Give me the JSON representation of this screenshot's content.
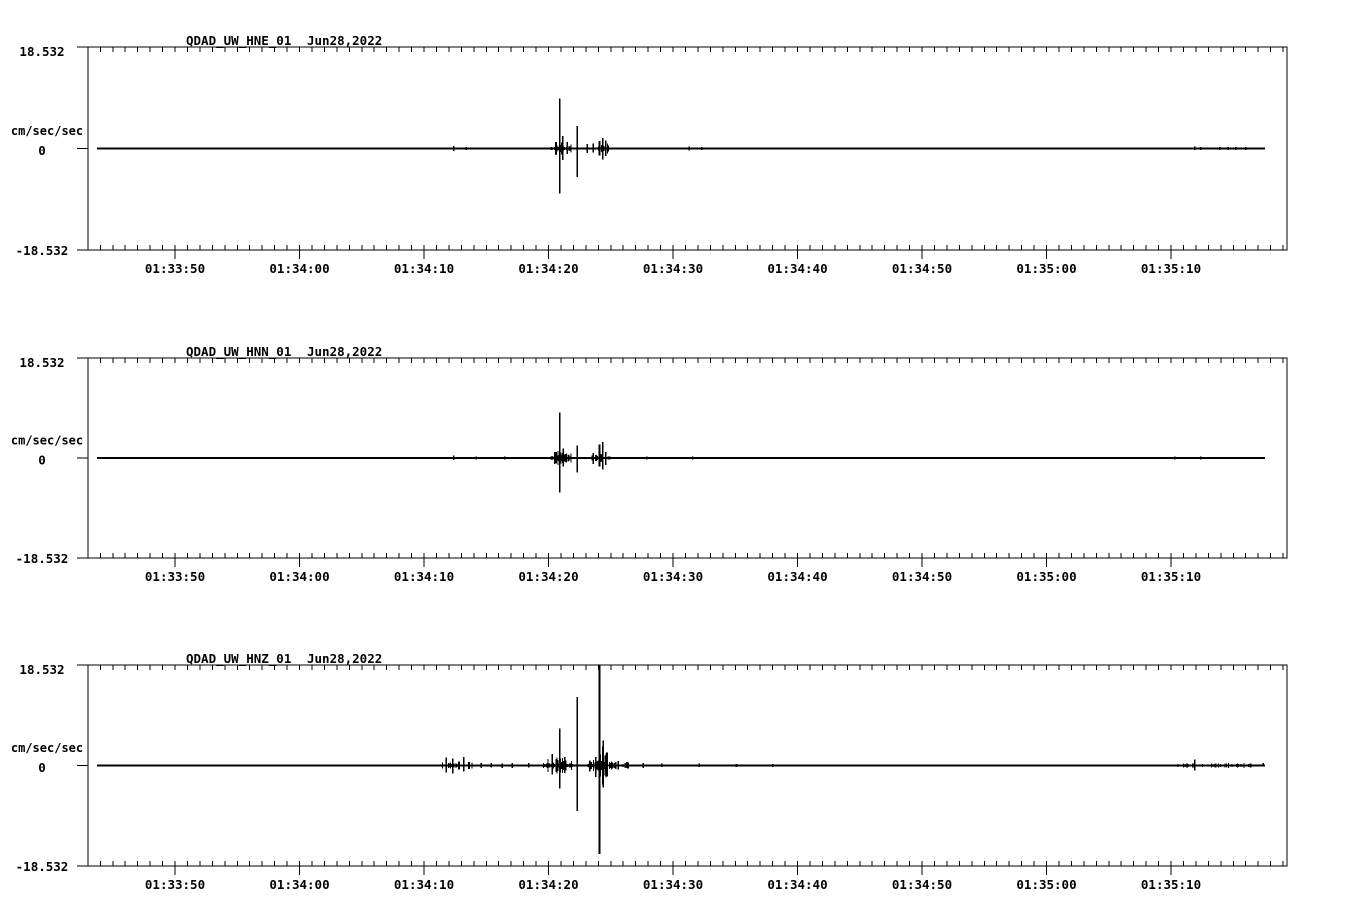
{
  "page": {
    "background_color": "#ffffff",
    "foreground_color": "#000000",
    "description": "Three-panel seismic strong-motion record display"
  },
  "chart_data": [
    {
      "type": "line",
      "title": "QDAD_UW_HNE_01",
      "date_label": "Jun28,2022",
      "ylabel": "cm/sec/sec",
      "ylim": [
        -18.532,
        18.532
      ],
      "ytick_labels": [
        "18.532",
        "0",
        "-18.532"
      ],
      "baseline_value": 0,
      "x_tick_labels": [
        "01:33:50",
        "01:34:00",
        "01:34:10",
        "01:34:20",
        "01:34:30",
        "01:34:40",
        "01:34:50",
        "01:35:00",
        "01:35:10"
      ],
      "x_tick_seconds": [
        10,
        20,
        30,
        40,
        50,
        60,
        70,
        80,
        90
      ],
      "x_minor_interval_sec": 1,
      "time_origin": "01:33:40",
      "trace": {
        "start_sec": 3.74,
        "end_sec": 97.56,
        "amplitude_units": "cm/sec/sec",
        "spikes": [
          {
            "t": 32.4,
            "up": 0.45,
            "down": 0.45
          },
          {
            "t": 33.4,
            "up": 0.3,
            "down": 0.3
          },
          {
            "t": 40.6,
            "up": 1.2,
            "down": 1.1
          },
          {
            "t": 40.9,
            "up": 9.1,
            "down": 8.2
          },
          {
            "t": 41.15,
            "up": 2.3,
            "down": 2.1
          },
          {
            "t": 41.5,
            "up": 1.2,
            "down": 1.0
          },
          {
            "t": 42.3,
            "up": 4.1,
            "down": 5.2
          },
          {
            "t": 43.1,
            "up": 0.8,
            "down": 0.8
          },
          {
            "t": 43.6,
            "up": 0.9,
            "down": 0.7
          },
          {
            "t": 44.1,
            "up": 1.4,
            "down": 1.3
          },
          {
            "t": 44.35,
            "up": 1.9,
            "down": 2.0
          },
          {
            "t": 44.6,
            "up": 1.5,
            "down": 1.4
          },
          {
            "t": 51.3,
            "up": 0.4,
            "down": 0.35
          },
          {
            "t": 52.3,
            "up": 0.3,
            "down": 0.3
          },
          {
            "t": 91.9,
            "up": 0.35,
            "down": 0.3
          },
          {
            "t": 92.4,
            "up": 0.3,
            "down": 0.3
          },
          {
            "t": 93.9,
            "up": 0.3,
            "down": 0.25
          },
          {
            "t": 94.6,
            "up": 0.3,
            "down": 0.3
          },
          {
            "t": 95.2,
            "up": 0.25,
            "down": 0.25
          },
          {
            "t": 96.0,
            "up": 0.3,
            "down": 0.25
          }
        ],
        "noise_bursts": [
          {
            "t0": 40.2,
            "t1": 41.9,
            "amp": 1.15
          },
          {
            "t0": 40.6,
            "t1": 41.2,
            "amp": 1.6
          },
          {
            "t0": 44.0,
            "t1": 44.9,
            "amp": 1.0
          }
        ]
      }
    },
    {
      "type": "line",
      "title": "QDAD_UW_HNN_01",
      "date_label": "Jun28,2022",
      "ylabel": "cm/sec/sec",
      "ylim": [
        -18.532,
        18.532
      ],
      "ytick_labels": [
        "18.532",
        "0",
        "-18.532"
      ],
      "baseline_value": 0,
      "x_tick_labels": [
        "01:33:50",
        "01:34:00",
        "01:34:10",
        "01:34:20",
        "01:34:30",
        "01:34:40",
        "01:34:50",
        "01:35:00",
        "01:35:10"
      ],
      "x_tick_seconds": [
        10,
        20,
        30,
        40,
        50,
        60,
        70,
        80,
        90
      ],
      "x_minor_interval_sec": 1,
      "time_origin": "01:33:40",
      "trace": {
        "start_sec": 3.74,
        "end_sec": 97.56,
        "amplitude_units": "cm/sec/sec",
        "spikes": [
          {
            "t": 32.4,
            "up": 0.45,
            "down": 0.4
          },
          {
            "t": 34.2,
            "up": 0.3,
            "down": 0.3
          },
          {
            "t": 36.5,
            "up": 0.3,
            "down": 0.3
          },
          {
            "t": 40.6,
            "up": 1.1,
            "down": 1.0
          },
          {
            "t": 40.9,
            "up": 8.4,
            "down": 6.4
          },
          {
            "t": 41.2,
            "up": 1.8,
            "down": 1.6
          },
          {
            "t": 42.3,
            "up": 2.3,
            "down": 2.7
          },
          {
            "t": 43.6,
            "up": 0.9,
            "down": 1.1
          },
          {
            "t": 44.1,
            "up": 2.5,
            "down": 1.6
          },
          {
            "t": 44.35,
            "up": 3.0,
            "down": 2.1
          },
          {
            "t": 44.6,
            "up": 1.1,
            "down": 1.3
          },
          {
            "t": 47.9,
            "up": 0.3,
            "down": 0.3
          },
          {
            "t": 51.6,
            "up": 0.3,
            "down": 0.25
          },
          {
            "t": 90.3,
            "up": 0.3,
            "down": 0.25
          },
          {
            "t": 92.4,
            "up": 0.3,
            "down": 0.3
          }
        ],
        "noise_bursts": [
          {
            "t0": 40.2,
            "t1": 41.9,
            "amp": 1.2
          },
          {
            "t0": 40.6,
            "t1": 41.2,
            "amp": 1.6
          },
          {
            "t0": 43.5,
            "t1": 45.0,
            "amp": 0.8
          }
        ]
      }
    },
    {
      "type": "line",
      "title": "QDAD_UW_HNZ_01",
      "date_label": "Jun28,2022",
      "ylabel": "cm/sec/sec",
      "ylim": [
        -18.532,
        18.532
      ],
      "ytick_labels": [
        "18.532",
        "0",
        "-18.532"
      ],
      "baseline_value": 0,
      "x_tick_labels": [
        "01:33:50",
        "01:34:00",
        "01:34:10",
        "01:34:20",
        "01:34:30",
        "01:34:40",
        "01:34:50",
        "01:35:00",
        "01:35:10"
      ],
      "x_tick_seconds": [
        10,
        20,
        30,
        40,
        50,
        60,
        70,
        80,
        90
      ],
      "x_minor_interval_sec": 1,
      "time_origin": "01:33:40",
      "trace": {
        "start_sec": 3.74,
        "end_sec": 97.56,
        "amplitude_units": "cm/sec/sec",
        "spikes": [
          {
            "t": 31.8,
            "up": 1.5,
            "down": 1.3
          },
          {
            "t": 32.3,
            "up": 1.3,
            "down": 1.5
          },
          {
            "t": 33.2,
            "up": 1.6,
            "down": 1.1
          },
          {
            "t": 34.6,
            "up": 0.5,
            "down": 0.5
          },
          {
            "t": 35.4,
            "up": 0.5,
            "down": 0.4
          },
          {
            "t": 36.3,
            "up": 0.4,
            "down": 0.45
          },
          {
            "t": 37.1,
            "up": 0.5,
            "down": 0.5
          },
          {
            "t": 38.4,
            "up": 0.5,
            "down": 0.4
          },
          {
            "t": 40.3,
            "up": 2.1,
            "down": 1.7
          },
          {
            "t": 40.9,
            "up": 6.8,
            "down": 4.2
          },
          {
            "t": 41.3,
            "up": 1.6,
            "down": 1.4
          },
          {
            "t": 42.3,
            "up": 12.6,
            "down": 8.4
          },
          {
            "t": 43.3,
            "up": 0.9,
            "down": 1.1
          },
          {
            "t": 43.8,
            "up": 1.6,
            "down": 2.1
          },
          {
            "t": 44.1,
            "up": 18.4,
            "down": 16.3
          },
          {
            "t": 44.4,
            "up": 4.6,
            "down": 4.1
          },
          {
            "t": 44.7,
            "up": 2.4,
            "down": 2.0
          },
          {
            "t": 45.6,
            "up": 0.8,
            "down": 0.7
          },
          {
            "t": 46.3,
            "up": 0.6,
            "down": 0.5
          },
          {
            "t": 47.6,
            "up": 0.5,
            "down": 0.5
          },
          {
            "t": 49.1,
            "up": 0.35,
            "down": 0.3
          },
          {
            "t": 52.1,
            "up": 0.4,
            "down": 0.3
          },
          {
            "t": 55.1,
            "up": 0.3,
            "down": 0.3
          },
          {
            "t": 58.0,
            "up": 0.25,
            "down": 0.25
          },
          {
            "t": 91.9,
            "up": 1.1,
            "down": 0.9
          },
          {
            "t": 97.4,
            "up": 0.5,
            "down": 0.2
          }
        ],
        "noise_bursts": [
          {
            "t0": 31.5,
            "t1": 33.9,
            "amp": 0.75
          },
          {
            "t0": 39.6,
            "t1": 42.0,
            "amp": 1.3
          },
          {
            "t0": 40.6,
            "t1": 41.2,
            "amp": 1.5
          },
          {
            "t0": 43.0,
            "t1": 43.9,
            "amp": 1.1
          },
          {
            "t0": 43.9,
            "t1": 44.8,
            "amp": 3.6
          },
          {
            "t0": 44.8,
            "t1": 46.6,
            "amp": 0.8
          },
          {
            "t0": 90.3,
            "t1": 96.6,
            "amp": 0.45
          }
        ]
      }
    }
  ]
}
